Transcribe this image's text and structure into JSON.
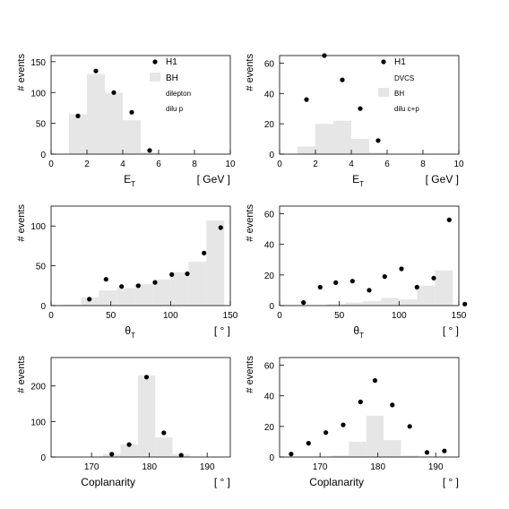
{
  "colors": {
    "histogram": "#e6e6e6",
    "points": "#000000",
    "frame": "#000000"
  },
  "chart_data": [
    {
      "type": "bar",
      "ylabel": "# events",
      "xlabel": "E",
      "xlabel_sub": "T",
      "unit": "[ GeV ]",
      "xlim": [
        0,
        10
      ],
      "ylim": [
        0,
        160
      ],
      "xticks": [
        0,
        2,
        4,
        6,
        8,
        10
      ],
      "yticks": [
        0,
        50,
        100,
        150
      ],
      "legend": {
        "position": "top-right",
        "entries": [
          "H1",
          "BH",
          "dilepton",
          "dilu p"
        ]
      },
      "bars": [
        {
          "x0": 1.0,
          "x1": 2.0,
          "y": 65
        },
        {
          "x0": 2.0,
          "x1": 3.0,
          "y": 130
        },
        {
          "x0": 3.0,
          "x1": 4.0,
          "y": 100
        },
        {
          "x0": 4.0,
          "x1": 5.0,
          "y": 55
        },
        {
          "x0": 5.0,
          "x1": 6.0,
          "y": 3
        }
      ],
      "points": [
        {
          "x": 1.5,
          "y": 62
        },
        {
          "x": 2.5,
          "y": 135
        },
        {
          "x": 3.5,
          "y": 100
        },
        {
          "x": 4.5,
          "y": 68
        },
        {
          "x": 5.5,
          "y": 6
        }
      ]
    },
    {
      "type": "bar",
      "ylabel": "# events",
      "xlabel": "E",
      "xlabel_sub": "T",
      "unit": "[ GeV ]",
      "xlim": [
        0,
        10
      ],
      "ylim": [
        0,
        65
      ],
      "xticks": [
        0,
        2,
        4,
        6,
        8,
        10
      ],
      "yticks": [
        0,
        20,
        40,
        60
      ],
      "legend": {
        "position": "top-right",
        "entries": [
          "H1",
          "DVCS",
          "BH",
          "dilu c+p"
        ]
      },
      "bars": [
        {
          "x0": 1.0,
          "x1": 2.0,
          "y": 5
        },
        {
          "x0": 2.0,
          "x1": 3.0,
          "y": 20
        },
        {
          "x0": 3.0,
          "x1": 4.0,
          "y": 22
        },
        {
          "x0": 4.0,
          "x1": 5.0,
          "y": 10
        },
        {
          "x0": 5.0,
          "x1": 6.0,
          "y": 1
        }
      ],
      "points": [
        {
          "x": 1.5,
          "y": 36
        },
        {
          "x": 2.5,
          "y": 65
        },
        {
          "x": 3.5,
          "y": 49
        },
        {
          "x": 4.5,
          "y": 30
        },
        {
          "x": 5.5,
          "y": 9
        }
      ]
    },
    {
      "type": "bar",
      "ylabel": "# events",
      "xlabel": "θ",
      "xlabel_sub": "T",
      "unit": "[ ° ]",
      "xlim": [
        0,
        150
      ],
      "ylim": [
        0,
        125
      ],
      "xticks": [
        0,
        50,
        100,
        150
      ],
      "yticks": [
        0,
        50,
        100
      ],
      "legend": null,
      "bars": [
        {
          "x0": 10,
          "x1": 25,
          "y": 1
        },
        {
          "x0": 25,
          "x1": 40,
          "y": 10
        },
        {
          "x0": 40,
          "x1": 55,
          "y": 19
        },
        {
          "x0": 55,
          "x1": 70,
          "y": 22
        },
        {
          "x0": 70,
          "x1": 85,
          "y": 27
        },
        {
          "x0": 85,
          "x1": 100,
          "y": 33
        },
        {
          "x0": 100,
          "x1": 115,
          "y": 42
        },
        {
          "x0": 115,
          "x1": 130,
          "y": 55
        },
        {
          "x0": 130,
          "x1": 145,
          "y": 107
        }
      ],
      "points": [
        {
          "x": 32,
          "y": 8
        },
        {
          "x": 46,
          "y": 33
        },
        {
          "x": 59,
          "y": 24
        },
        {
          "x": 73,
          "y": 25
        },
        {
          "x": 87,
          "y": 29
        },
        {
          "x": 101,
          "y": 39
        },
        {
          "x": 114,
          "y": 40
        },
        {
          "x": 128,
          "y": 66
        },
        {
          "x": 142,
          "y": 98
        }
      ]
    },
    {
      "type": "bar",
      "ylabel": "# events",
      "xlabel": "θ",
      "xlabel_sub": "T",
      "unit": "[ ° ]",
      "xlim": [
        0,
        150
      ],
      "ylim": [
        0,
        65
      ],
      "xticks": [
        0,
        50,
        100,
        150
      ],
      "yticks": [
        0,
        20,
        40,
        60
      ],
      "legend": null,
      "bars": [
        {
          "x0": 40,
          "x1": 55,
          "y": 1
        },
        {
          "x0": 55,
          "x1": 70,
          "y": 2
        },
        {
          "x0": 70,
          "x1": 85,
          "y": 3
        },
        {
          "x0": 85,
          "x1": 100,
          "y": 5
        },
        {
          "x0": 100,
          "x1": 115,
          "y": 4
        },
        {
          "x0": 115,
          "x1": 130,
          "y": 13
        },
        {
          "x0": 130,
          "x1": 145,
          "y": 23
        }
      ],
      "points": [
        {
          "x": 20,
          "y": 2
        },
        {
          "x": 34,
          "y": 12
        },
        {
          "x": 47,
          "y": 15
        },
        {
          "x": 61,
          "y": 16
        },
        {
          "x": 75,
          "y": 10
        },
        {
          "x": 88,
          "y": 19
        },
        {
          "x": 102,
          "y": 24
        },
        {
          "x": 115,
          "y": 12
        },
        {
          "x": 129,
          "y": 18
        },
        {
          "x": 142,
          "y": 56
        },
        {
          "x": 155,
          "y": 1
        }
      ]
    },
    {
      "type": "bar",
      "ylabel": "# events",
      "xlabel": "Coplanarity",
      "xlabel_sub": "",
      "unit": "[ ° ]",
      "xlim": [
        163,
        194
      ],
      "ylim": [
        0,
        280
      ],
      "xticks": [
        170,
        180,
        190
      ],
      "yticks": [
        0,
        100,
        200
      ],
      "legend": null,
      "bars": [
        {
          "x0": 172,
          "x1": 175,
          "y": 8
        },
        {
          "x0": 175,
          "x1": 178,
          "y": 35
        },
        {
          "x0": 178,
          "x1": 181,
          "y": 230
        },
        {
          "x0": 181,
          "x1": 184,
          "y": 55
        },
        {
          "x0": 184,
          "x1": 187,
          "y": 8
        }
      ],
      "points": [
        {
          "x": 173.5,
          "y": 8
        },
        {
          "x": 176.5,
          "y": 35
        },
        {
          "x": 179.5,
          "y": 225
        },
        {
          "x": 182.5,
          "y": 68
        },
        {
          "x": 185.5,
          "y": 5
        }
      ]
    },
    {
      "type": "bar",
      "ylabel": "# events",
      "xlabel": "Coplanarity",
      "xlabel_sub": "",
      "unit": "[ ° ]",
      "xlim": [
        163,
        194
      ],
      "ylim": [
        0,
        65
      ],
      "xticks": [
        170,
        180,
        190
      ],
      "yticks": [
        0,
        20,
        40,
        60
      ],
      "legend": null,
      "bars": [
        {
          "x0": 172,
          "x1": 175,
          "y": 1
        },
        {
          "x0": 175,
          "x1": 178,
          "y": 10
        },
        {
          "x0": 178,
          "x1": 181,
          "y": 27
        },
        {
          "x0": 181,
          "x1": 184,
          "y": 11
        },
        {
          "x0": 184,
          "x1": 187,
          "y": 1
        }
      ],
      "points": [
        {
          "x": 165,
          "y": 2
        },
        {
          "x": 168,
          "y": 9
        },
        {
          "x": 171,
          "y": 16
        },
        {
          "x": 174,
          "y": 21
        },
        {
          "x": 177,
          "y": 36
        },
        {
          "x": 179.5,
          "y": 50
        },
        {
          "x": 182.5,
          "y": 34
        },
        {
          "x": 185.5,
          "y": 20
        },
        {
          "x": 188.5,
          "y": 3
        },
        {
          "x": 191.5,
          "y": 4
        }
      ]
    }
  ]
}
